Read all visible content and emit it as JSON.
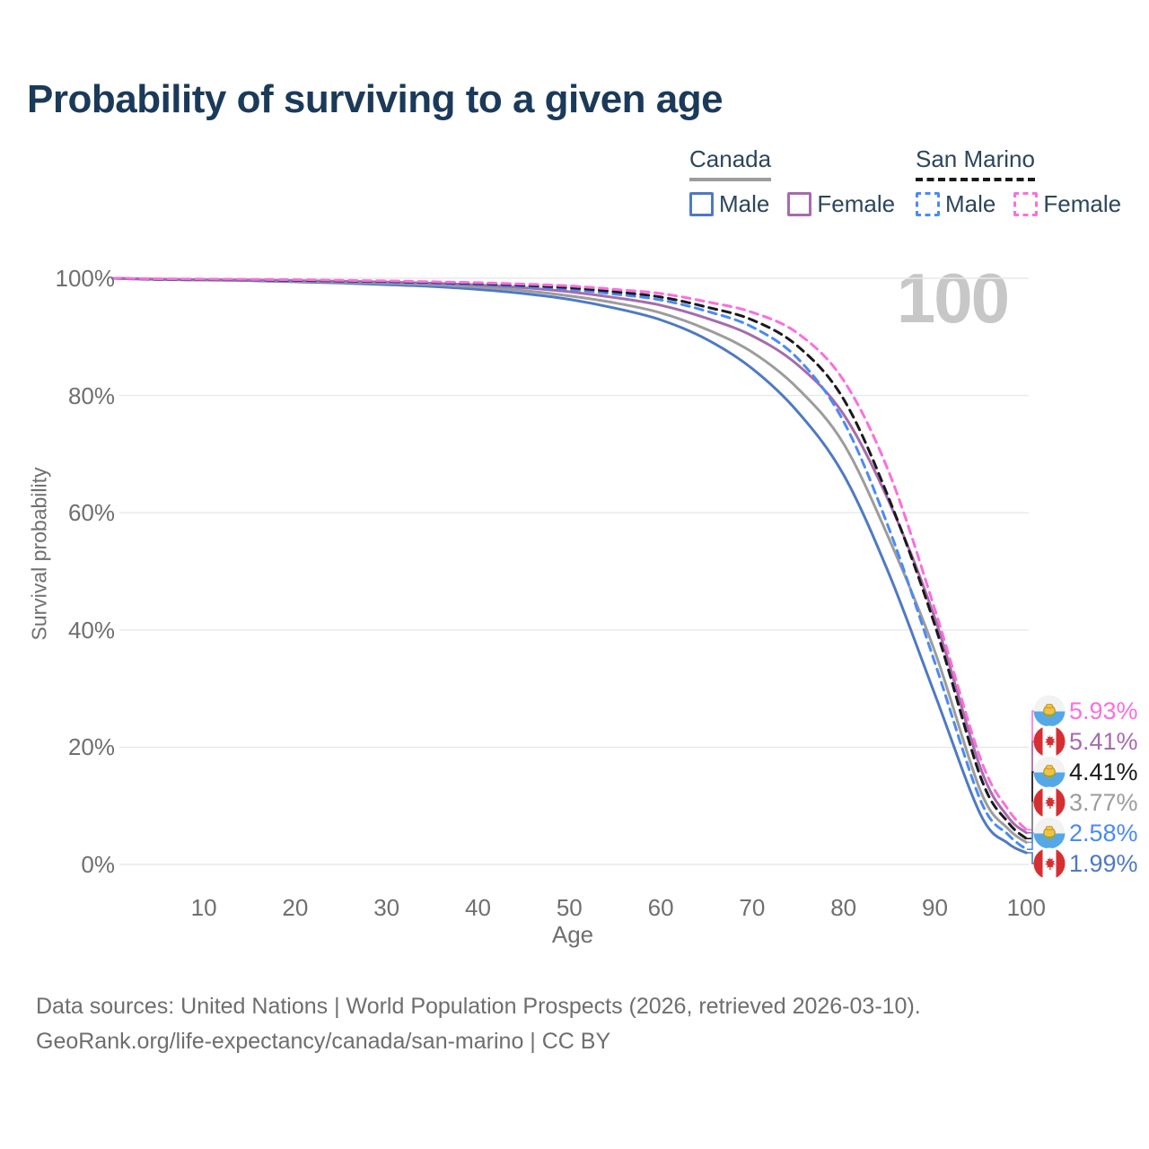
{
  "title": "Probability of surviving to a given age",
  "watermark": "100",
  "legend": {
    "groups": [
      {
        "label": "Canada",
        "line_style": "solid",
        "line_color": "#9c9c9c",
        "items": [
          {
            "label": "Male",
            "color": "#4e79c4",
            "dash": false
          },
          {
            "label": "Female",
            "color": "#a66bad",
            "dash": false
          }
        ]
      },
      {
        "label": "San Marino",
        "line_style": "dashed",
        "line_color": "#1a1a1a",
        "items": [
          {
            "label": "Male",
            "color": "#4a8af4",
            "dash": true
          },
          {
            "label": "Female",
            "color": "#fa6fdc",
            "dash": true
          }
        ]
      }
    ]
  },
  "chart_data": {
    "type": "line",
    "title": "Probability of surviving to a given age",
    "xlabel": "Age",
    "ylabel": "Survival probability",
    "xlim": [
      0,
      100
    ],
    "ylim": [
      0,
      100
    ],
    "grid": "horizontal-only",
    "legend_position": "top-right",
    "x_ticks": [
      10,
      20,
      30,
      40,
      50,
      60,
      70,
      80,
      90,
      100
    ],
    "y_ticks": [
      {
        "value": 0,
        "label": "0%"
      },
      {
        "value": 20,
        "label": "20%"
      },
      {
        "value": 40,
        "label": "40%"
      },
      {
        "value": 60,
        "label": "60%"
      },
      {
        "value": 80,
        "label": "80%"
      },
      {
        "value": 100,
        "label": "100%"
      }
    ],
    "x": [
      0,
      5,
      10,
      15,
      20,
      25,
      30,
      35,
      40,
      45,
      50,
      55,
      60,
      65,
      70,
      75,
      80,
      85,
      90,
      95,
      98,
      100
    ],
    "series": [
      {
        "name": "Canada Male",
        "color": "#4e79c4",
        "dash": false,
        "flag": "canada",
        "end_label": "1.99%",
        "values": [
          100,
          99.8,
          99.7,
          99.6,
          99.4,
          99.2,
          98.9,
          98.6,
          98.1,
          97.4,
          96.4,
          94.9,
          92.9,
          89.6,
          84.6,
          77.2,
          66.5,
          49.5,
          29.0,
          8.5,
          3.6,
          1.99
        ]
      },
      {
        "name": "Canada Both sexes",
        "color": "#9c9c9c",
        "dash": false,
        "flag": "canada",
        "end_label": "3.77%",
        "values": [
          100,
          99.8,
          99.7,
          99.65,
          99.5,
          99.35,
          99.15,
          98.9,
          98.5,
          97.9,
          97.0,
          95.8,
          94.1,
          91.3,
          87.4,
          81.2,
          71.8,
          55.5,
          36.3,
          12.5,
          6.1,
          3.77
        ]
      },
      {
        "name": "Canada Female",
        "color": "#a66bad",
        "dash": false,
        "flag": "canada",
        "end_label": "5.41%",
        "values": [
          100,
          99.85,
          99.75,
          99.7,
          99.6,
          99.5,
          99.35,
          99.15,
          98.85,
          98.4,
          97.7,
          96.7,
          95.4,
          93.2,
          90.2,
          85.2,
          76.8,
          61.8,
          42.0,
          16.4,
          8.1,
          5.41
        ]
      },
      {
        "name": "San Marino Male",
        "color": "#4a8af4",
        "dash": true,
        "flag": "san-marino",
        "end_label": "2.58%",
        "values": [
          100,
          99.8,
          99.75,
          99.7,
          99.6,
          99.5,
          99.35,
          99.15,
          98.9,
          98.55,
          98.1,
          97.3,
          96.3,
          94.4,
          91.7,
          86.3,
          75.6,
          57.2,
          34.4,
          10.9,
          5.1,
          2.58
        ]
      },
      {
        "name": "San Marino Both sexes",
        "color": "#1a1a1a",
        "dash": true,
        "flag": "san-marino",
        "end_label": "4.41%",
        "values": [
          100,
          99.85,
          99.8,
          99.75,
          99.65,
          99.55,
          99.45,
          99.3,
          99.1,
          98.8,
          98.4,
          97.7,
          96.8,
          95.1,
          92.9,
          88.4,
          79.4,
          62.3,
          40.8,
          14.9,
          7.2,
          4.41
        ]
      },
      {
        "name": "San Marino Female",
        "color": "#fa6fdc",
        "dash": true,
        "flag": "san-marino",
        "end_label": "5.93%",
        "values": [
          100,
          99.9,
          99.85,
          99.8,
          99.75,
          99.65,
          99.55,
          99.4,
          99.25,
          99.0,
          98.7,
          98.1,
          97.4,
          96.0,
          94.2,
          90.6,
          82.6,
          66.8,
          43.5,
          18.0,
          9.4,
          5.93
        ]
      }
    ]
  },
  "footer": {
    "line1": "Data sources: United Nations | World Population Prospects (2026, retrieved 2026-03-10).",
    "line2": "GeoRank.org/life-expectancy/canada/san-marino | CC BY"
  }
}
